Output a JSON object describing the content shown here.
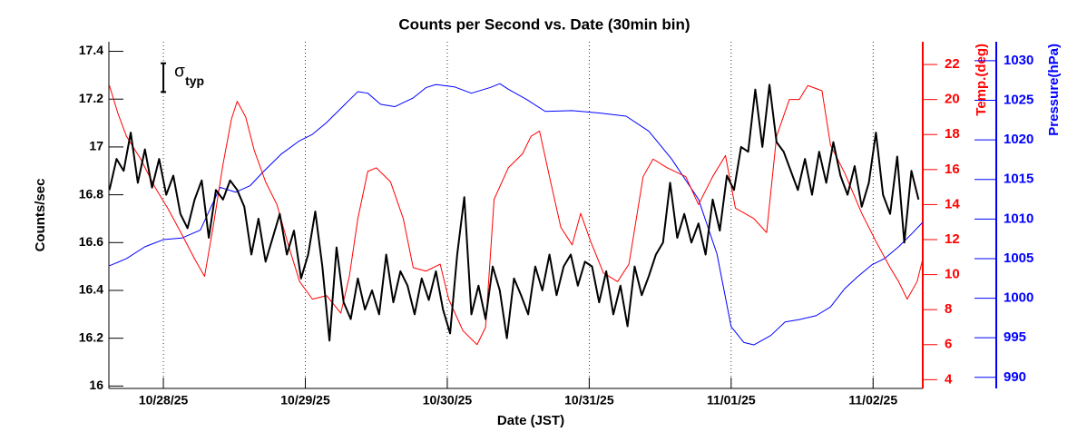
{
  "chart_data": {
    "type": "line",
    "title": "Counts per Second vs. Date (30min bin)",
    "xlabel": "Date (JST)",
    "ylabel": "Counts/sec",
    "y2label": "Temp.(deg)",
    "y3label": "Pressure(hPa)",
    "xlim": [
      27.616,
      33.35
    ],
    "xticks": [
      {
        "value": 28,
        "label": "10/28/25"
      },
      {
        "value": 29,
        "label": "10/29/25"
      },
      {
        "value": 30,
        "label": "10/30/25"
      },
      {
        "value": 31,
        "label": "10/31/25"
      },
      {
        "value": 32,
        "label": "11/01/25"
      },
      {
        "value": 33,
        "label": "11/02/25"
      }
    ],
    "xgrid": true,
    "ylim": [
      15.99,
      17.44
    ],
    "yticks": [
      16,
      16.2,
      16.4,
      16.6,
      16.8,
      17,
      17.2,
      17.4
    ],
    "y2lim": [
      3.5,
      23.3
    ],
    "y2ticks": [
      4,
      6,
      8,
      10,
      12,
      14,
      16,
      18,
      20,
      22
    ],
    "y2color": "#ff0000",
    "y3lim": [
      988.6,
      1032.4
    ],
    "y3ticks": [
      990,
      995,
      1000,
      1005,
      1010,
      1015,
      1020,
      1025,
      1030
    ],
    "y3color": "#0000ff",
    "sigma_typ": {
      "label": "σ",
      "label_sub": "typ",
      "x": 28.0,
      "y": 17.29,
      "error": 0.06
    },
    "series": [
      {
        "axis": "y3",
        "color": "#0000ff",
        "width": 1,
        "x": [
          27.62,
          27.74,
          27.87,
          28.0,
          28.13,
          28.26,
          28.4,
          28.51,
          28.61,
          28.7,
          28.83,
          28.96,
          29.05,
          29.15,
          29.28,
          29.37,
          29.44,
          29.53,
          29.63,
          29.76,
          29.85,
          29.92,
          30.05,
          30.17,
          30.3,
          30.37,
          30.43,
          30.56,
          30.69,
          30.88,
          31.07,
          31.26,
          31.42,
          31.58,
          31.77,
          31.9,
          32.0,
          32.09,
          32.16,
          32.28,
          32.38,
          32.48,
          32.6,
          32.7,
          32.8,
          32.89,
          32.99,
          33.08,
          33.18,
          33.27,
          33.35
        ],
        "values": [
          1004.1,
          1005.0,
          1006.5,
          1007.4,
          1007.6,
          1008.6,
          1014.0,
          1013.4,
          1014.2,
          1015.9,
          1018.2,
          1019.9,
          1020.7,
          1022.2,
          1024.5,
          1026.1,
          1025.9,
          1024.5,
          1024.2,
          1025.3,
          1026.6,
          1027.0,
          1026.7,
          1025.9,
          1026.6,
          1027.1,
          1026.4,
          1025.1,
          1023.6,
          1023.7,
          1023.4,
          1023.0,
          1021.1,
          1017.6,
          1012.5,
          1005.6,
          996.4,
          994.4,
          994.1,
          995.3,
          997.0,
          997.3,
          997.8,
          998.9,
          1001.2,
          1002.7,
          1004.2,
          1005.0,
          1006.5,
          1008.1,
          1009.6
        ]
      },
      {
        "axis": "y2",
        "color": "#ff0000",
        "width": 1,
        "x": [
          27.62,
          27.68,
          27.74,
          27.84,
          27.94,
          28.03,
          28.13,
          28.22,
          28.29,
          28.35,
          28.42,
          28.48,
          28.52,
          28.58,
          28.64,
          28.72,
          28.8,
          28.88,
          28.96,
          29.05,
          29.15,
          29.25,
          29.31,
          29.37,
          29.44,
          29.5,
          29.6,
          29.69,
          29.76,
          29.85,
          29.95,
          30.01,
          30.11,
          30.21,
          30.27,
          30.33,
          30.43,
          30.53,
          30.59,
          30.65,
          30.72,
          30.8,
          30.88,
          30.94,
          31.01,
          31.1,
          31.2,
          31.28,
          31.38,
          31.45,
          31.55,
          31.68,
          31.77,
          31.87,
          31.96,
          32.03,
          32.16,
          32.25,
          32.32,
          32.41,
          32.48,
          32.54,
          32.64,
          32.7,
          32.8,
          32.92,
          33.02,
          33.12,
          33.18,
          33.24,
          33.31,
          33.35
        ],
        "values": [
          20.8,
          19.2,
          17.9,
          16.6,
          15.0,
          13.8,
          12.3,
          10.9,
          9.9,
          12.7,
          16.3,
          18.9,
          19.9,
          19.0,
          17.1,
          15.3,
          14.0,
          11.7,
          9.6,
          8.6,
          8.8,
          7.8,
          9.9,
          13.2,
          15.9,
          16.1,
          15.3,
          13.2,
          10.4,
          10.2,
          10.6,
          8.6,
          6.8,
          6.0,
          7.0,
          14.3,
          16.1,
          16.9,
          17.9,
          18.2,
          15.6,
          12.7,
          11.7,
          13.5,
          11.9,
          10.1,
          9.6,
          10.6,
          15.6,
          16.6,
          16.1,
          15.6,
          14.0,
          15.6,
          16.8,
          13.8,
          13.2,
          12.4,
          17.9,
          20.0,
          20.0,
          20.8,
          20.5,
          17.4,
          15.8,
          13.5,
          11.9,
          10.4,
          9.6,
          8.6,
          9.6,
          10.9
        ]
      },
      {
        "axis": "y",
        "color": "#000000",
        "width": 2,
        "x": [
          27.62,
          27.67,
          27.72,
          27.77,
          27.82,
          27.87,
          27.92,
          27.97,
          28.02,
          28.07,
          28.12,
          28.17,
          28.22,
          28.27,
          28.32,
          28.37,
          28.42,
          28.47,
          28.52,
          28.57,
          28.62,
          28.67,
          28.72,
          28.77,
          28.82,
          28.87,
          28.92,
          28.97,
          29.02,
          29.07,
          29.12,
          29.17,
          29.22,
          29.27,
          29.32,
          29.37,
          29.42,
          29.47,
          29.52,
          29.57,
          29.62,
          29.67,
          29.72,
          29.77,
          29.82,
          29.87,
          29.92,
          29.97,
          30.02,
          30.07,
          30.12,
          30.17,
          30.22,
          30.27,
          30.32,
          30.37,
          30.42,
          30.47,
          30.52,
          30.57,
          30.62,
          30.67,
          30.72,
          30.77,
          30.82,
          30.87,
          30.92,
          30.97,
          31.02,
          31.07,
          31.12,
          31.17,
          31.22,
          31.27,
          31.32,
          31.37,
          31.42,
          31.47,
          31.52,
          31.57,
          31.62,
          31.67,
          31.72,
          31.77,
          31.82,
          31.87,
          31.92,
          31.97,
          32.02,
          32.07,
          32.12,
          32.17,
          32.22,
          32.27,
          32.32,
          32.37,
          32.42,
          32.47,
          32.52,
          32.57,
          32.62,
          32.67,
          32.72,
          32.77,
          32.82,
          32.87,
          32.92,
          32.97,
          33.02,
          33.07,
          33.12,
          33.17,
          33.22,
          33.27,
          33.32
        ],
        "values": [
          16.82,
          16.95,
          16.9,
          17.06,
          16.85,
          16.99,
          16.83,
          16.95,
          16.8,
          16.88,
          16.72,
          16.66,
          16.78,
          16.86,
          16.62,
          16.82,
          16.78,
          16.86,
          16.82,
          16.75,
          16.55,
          16.7,
          16.52,
          16.62,
          16.72,
          16.55,
          16.65,
          16.45,
          16.55,
          16.73,
          16.5,
          16.19,
          16.58,
          16.35,
          16.28,
          16.45,
          16.32,
          16.4,
          16.3,
          16.55,
          16.35,
          16.48,
          16.42,
          16.3,
          16.45,
          16.36,
          16.48,
          16.32,
          16.22,
          16.55,
          16.79,
          16.3,
          16.42,
          16.28,
          16.5,
          16.4,
          16.2,
          16.45,
          16.38,
          16.3,
          16.5,
          16.4,
          16.55,
          16.38,
          16.5,
          16.55,
          16.42,
          16.52,
          16.5,
          16.35,
          16.48,
          16.3,
          16.42,
          16.25,
          16.5,
          16.38,
          16.46,
          16.55,
          16.6,
          16.85,
          16.62,
          16.72,
          16.6,
          16.68,
          16.55,
          16.78,
          16.65,
          16.88,
          16.82,
          17.0,
          16.98,
          17.24,
          17.0,
          17.26,
          17.02,
          16.98,
          16.9,
          16.82,
          16.95,
          16.8,
          16.98,
          16.85,
          17.02,
          16.88,
          16.8,
          16.92,
          16.75,
          16.85,
          17.06,
          16.8,
          16.72,
          16.96,
          16.6,
          16.9,
          16.78
        ]
      }
    ]
  }
}
